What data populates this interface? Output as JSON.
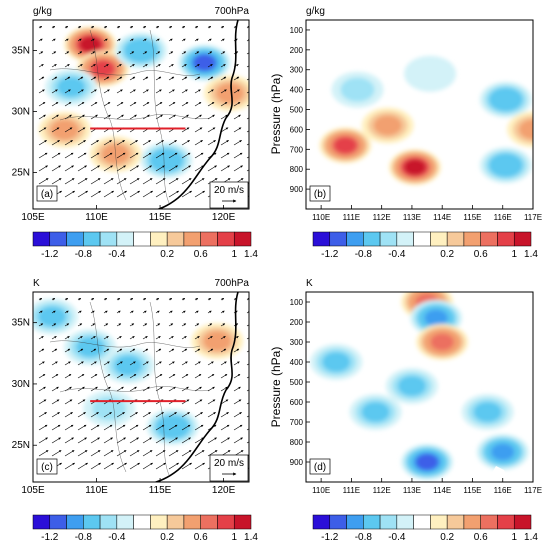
{
  "figure": {
    "colorbar": {
      "ticks": [
        "-1.2",
        "-0.8",
        "-0.4",
        "0.2",
        "0.6",
        "1",
        "1.4"
      ],
      "colors": [
        "#2b0fd8",
        "#3d5ee8",
        "#3e9ef0",
        "#5cc8f0",
        "#9fe2f5",
        "#d3f2f8",
        "#ffffff",
        "#fff0c0",
        "#f6c99a",
        "#f2a070",
        "#ec7060",
        "#e44048",
        "#c8142a"
      ]
    },
    "panels": [
      {
        "id": "a",
        "label": "(a)",
        "unit": "g/kg",
        "level": "700hPa",
        "xticks": [
          "105E",
          "110E",
          "115E",
          "120E"
        ],
        "yticks": [
          "35N",
          "30N",
          "25N"
        ],
        "ref_vector": "20 m/s"
      },
      {
        "id": "b",
        "label": "(b)",
        "unit": "g/kg",
        "ylabel": "Pressure (hPa)",
        "xticks": [
          "110E",
          "111E",
          "112E",
          "113E",
          "114E",
          "115E",
          "116E",
          "117E"
        ],
        "yticks": [
          "100",
          "200",
          "300",
          "400",
          "500",
          "600",
          "700",
          "800",
          "900"
        ]
      },
      {
        "id": "c",
        "label": "(c)",
        "unit": "K",
        "level": "700hPa",
        "xticks": [
          "105E",
          "110E",
          "115E",
          "120E"
        ],
        "yticks": [
          "35N",
          "30N",
          "25N"
        ],
        "ref_vector": "20 m/s"
      },
      {
        "id": "d",
        "label": "(d)",
        "unit": "K",
        "ylabel": "Pressure (hPa)",
        "xticks": [
          "110E",
          "111E",
          "112E",
          "113E",
          "114E",
          "115E",
          "116E",
          "117E"
        ],
        "yticks": [
          "100",
          "200",
          "300",
          "400",
          "500",
          "600",
          "700",
          "800",
          "900"
        ]
      }
    ]
  },
  "chart_data": [
    {
      "type": "heatmap",
      "panel": "a",
      "title": "",
      "unit": "g/kg",
      "level": "700hPa",
      "x_range": [
        105,
        122
      ],
      "y_range": [
        22,
        37.5
      ],
      "anomaly_blobs": [
        {
          "lon": 109.5,
          "lat": 35.5,
          "value": 1.4
        },
        {
          "lon": 110.5,
          "lat": 33.5,
          "value": 1.2
        },
        {
          "lon": 113.5,
          "lat": 35,
          "value": -0.8
        },
        {
          "lon": 118.5,
          "lat": 34,
          "value": -1.2
        },
        {
          "lon": 108,
          "lat": 32,
          "value": -0.6
        },
        {
          "lon": 115.5,
          "lat": 26,
          "value": -0.8
        },
        {
          "lon": 107.5,
          "lat": 28.5,
          "value": 0.6
        },
        {
          "lon": 111.5,
          "lat": 26.5,
          "value": 0.6
        },
        {
          "lon": 120.5,
          "lat": 31.5,
          "value": 0.6
        }
      ],
      "section_line": {
        "lon": [
          109.5,
          117
        ],
        "lat": [
          28.6,
          28.6
        ]
      },
      "ref_vector": "20 m/s"
    },
    {
      "type": "heatmap",
      "panel": "b",
      "title": "",
      "unit": "g/kg",
      "xlabel": "",
      "ylabel": "Pressure (hPa)",
      "x_range": [
        109.5,
        117
      ],
      "y_range": [
        50,
        1000
      ],
      "anomaly_blobs": [
        {
          "lon": 110.8,
          "p": 680,
          "value": 1.2
        },
        {
          "lon": 113.1,
          "p": 790,
          "value": 1.4
        },
        {
          "lon": 112.2,
          "p": 580,
          "value": 0.6
        },
        {
          "lon": 116.1,
          "p": 450,
          "value": -0.8
        },
        {
          "lon": 111.2,
          "p": 400,
          "value": -0.4
        },
        {
          "lon": 116.1,
          "p": 780,
          "value": -0.8
        },
        {
          "lon": 113.6,
          "p": 320,
          "value": -0.3
        },
        {
          "lon": 117,
          "p": 600,
          "value": 0.5
        }
      ]
    },
    {
      "type": "heatmap",
      "panel": "c",
      "title": "",
      "unit": "K",
      "level": "700hPa",
      "x_range": [
        105,
        122
      ],
      "y_range": [
        22,
        37.5
      ],
      "anomaly_blobs": [
        {
          "lon": 109.5,
          "lat": 33,
          "value": -0.6
        },
        {
          "lon": 112.5,
          "lat": 31.5,
          "value": -0.6
        },
        {
          "lon": 106.5,
          "lat": 35.5,
          "value": -0.5
        },
        {
          "lon": 111,
          "lat": 28,
          "value": -0.4
        },
        {
          "lon": 116,
          "lat": 26.5,
          "value": -0.8
        },
        {
          "lon": 119.5,
          "lat": 33.5,
          "value": 0.5
        }
      ],
      "section_line": {
        "lon": [
          109.5,
          117
        ],
        "lat": [
          28.6,
          28.6
        ]
      },
      "ref_vector": "20 m/s"
    },
    {
      "type": "heatmap",
      "panel": "d",
      "title": "",
      "unit": "K",
      "xlabel": "",
      "ylabel": "Pressure (hPa)",
      "x_range": [
        109.5,
        117
      ],
      "y_range": [
        50,
        1000
      ],
      "anomaly_blobs": [
        {
          "lon": 113.5,
          "p": 100,
          "value": 0.9
        },
        {
          "lon": 113.8,
          "p": 180,
          "value": -1.0
        },
        {
          "lon": 114,
          "p": 300,
          "value": 1.0
        },
        {
          "lon": 110.5,
          "p": 400,
          "value": -0.6
        },
        {
          "lon": 113,
          "p": 520,
          "value": -0.5
        },
        {
          "lon": 111.8,
          "p": 650,
          "value": -0.6
        },
        {
          "lon": 115.5,
          "p": 650,
          "value": -0.6
        },
        {
          "lon": 113.5,
          "p": 900,
          "value": -1.2
        },
        {
          "lon": 116,
          "p": 850,
          "value": -1.0
        }
      ]
    }
  ]
}
